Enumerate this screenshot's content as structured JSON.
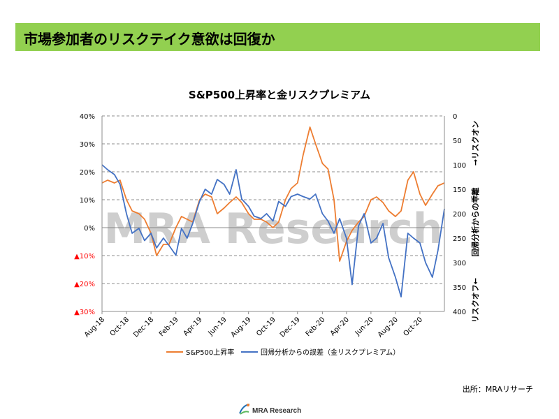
{
  "banner": {
    "title": "市場参加者のリスクテイク意欲は回復か",
    "color": "#92d050"
  },
  "source_note": "出所：MRAリサーチ",
  "logo_text": "MRA Research",
  "watermark": "MRA Research",
  "chart_data": {
    "type": "line",
    "title": "S&P500上昇率と金リスクプレミアム",
    "x": [
      "2018-08-01",
      "2018-08-15",
      "2018-09-01",
      "2018-09-15",
      "2018-10-01",
      "2018-10-15",
      "2018-11-01",
      "2018-11-15",
      "2018-12-01",
      "2018-12-15",
      "2019-01-01",
      "2019-01-15",
      "2019-02-01",
      "2019-02-15",
      "2019-03-01",
      "2019-03-15",
      "2019-04-01",
      "2019-04-15",
      "2019-05-01",
      "2019-05-15",
      "2019-06-01",
      "2019-06-15",
      "2019-07-01",
      "2019-07-15",
      "2019-08-01",
      "2019-08-15",
      "2019-09-01",
      "2019-09-15",
      "2019-10-01",
      "2019-10-15",
      "2019-11-01",
      "2019-11-15",
      "2019-12-01",
      "2019-12-15",
      "2020-01-01",
      "2020-01-15",
      "2020-02-01",
      "2020-02-15",
      "2020-03-01",
      "2020-03-15",
      "2020-04-01",
      "2020-04-15",
      "2020-05-01",
      "2020-05-15",
      "2020-06-01",
      "2020-06-15",
      "2020-07-01",
      "2020-07-15",
      "2020-08-01",
      "2020-08-15",
      "2020-09-01",
      "2020-09-15",
      "2020-10-01",
      "2020-10-15",
      "2020-11-01",
      "2020-11-15",
      "2020-12-01"
    ],
    "x_tick_labels": [
      "Aug-18",
      "Oct-18",
      "Dec-18",
      "Feb-19",
      "Apr-19",
      "Jun-19",
      "Aug-19",
      "Oct-19",
      "Dec-19",
      "Feb-20",
      "Apr-20",
      "Jun-20",
      "Aug-20",
      "Oct-20"
    ],
    "left_axis": {
      "ylim": [
        -0.3,
        0.4
      ],
      "ticks": [
        0.4,
        0.3,
        0.2,
        0.1,
        0.0,
        -0.1,
        -0.2,
        -0.3
      ],
      "tick_labels": [
        "40%",
        "30%",
        "20%",
        "10%",
        "0%",
        "▲10%",
        "▲20%",
        "▲30%"
      ],
      "negative_label_color": "#ff0000"
    },
    "right_axis": {
      "ylim": [
        400,
        0
      ],
      "inverted": true,
      "ticks": [
        0,
        50,
        100,
        150,
        200,
        250,
        300,
        350,
        400
      ],
      "tick_labels": [
        "0",
        "50",
        "100",
        "150",
        "200",
        "250",
        "300",
        "350",
        "400"
      ],
      "label_top": "→リスクオン",
      "label_middle": "回帰分析からの乖離",
      "label_bottom": "リスクオフ←"
    },
    "grid": "horizontal dashed",
    "legend_position": "bottom",
    "series": [
      {
        "name": "S&P500上昇率",
        "axis": "left",
        "color": "#ed7d31",
        "values": [
          0.16,
          0.17,
          0.16,
          0.17,
          0.1,
          0.06,
          0.05,
          0.03,
          -0.02,
          -0.1,
          -0.06,
          -0.06,
          0.0,
          0.04,
          0.03,
          0.02,
          0.1,
          0.12,
          0.11,
          0.05,
          0.07,
          0.09,
          0.11,
          0.09,
          0.05,
          0.03,
          0.03,
          0.02,
          0.0,
          0.02,
          0.1,
          0.14,
          0.16,
          0.26,
          0.36,
          0.3,
          0.23,
          0.21,
          0.1,
          -0.12,
          -0.05,
          -0.01,
          0.02,
          0.04,
          0.1,
          0.11,
          0.09,
          0.06,
          0.04,
          0.06,
          0.17,
          0.2,
          0.12,
          0.08,
          0.12,
          0.15,
          0.16
        ]
      },
      {
        "name": "回帰分析からの誤差（金リスクプレミアム）",
        "axis": "right",
        "color": "#4472c4",
        "values": [
          100,
          110,
          120,
          140,
          200,
          240,
          230,
          255,
          240,
          270,
          250,
          265,
          285,
          230,
          250,
          220,
          175,
          150,
          160,
          130,
          140,
          160,
          110,
          170,
          185,
          205,
          210,
          200,
          215,
          175,
          185,
          165,
          160,
          165,
          170,
          160,
          200,
          215,
          240,
          210,
          250,
          345,
          225,
          200,
          260,
          250,
          220,
          290,
          330,
          370,
          240,
          250,
          260,
          300,
          330,
          275,
          190
        ]
      }
    ]
  }
}
